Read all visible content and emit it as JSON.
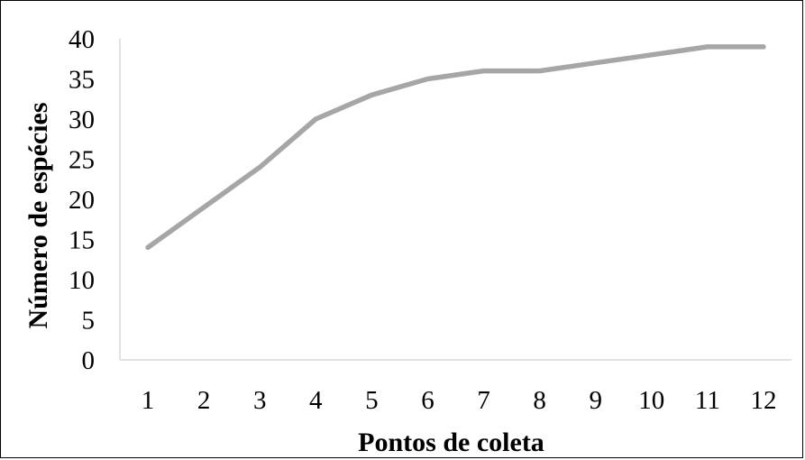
{
  "chart_data": {
    "type": "line",
    "title": "",
    "xlabel": "Pontos de coleta",
    "ylabel": "Número de espécies",
    "categories": [
      "1",
      "2",
      "3",
      "4",
      "5",
      "6",
      "7",
      "8",
      "9",
      "10",
      "11",
      "12"
    ],
    "series": [
      {
        "values": [
          14,
          19,
          24,
          30,
          33,
          35,
          36,
          36,
          37,
          38,
          39,
          39
        ]
      }
    ],
    "ylim": [
      0,
      40
    ],
    "yticks": [
      "0",
      "5",
      "10",
      "15",
      "20",
      "25",
      "30",
      "35",
      "40"
    ],
    "grid": false,
    "legend": "none",
    "colors": {
      "line": "#A6A6A6",
      "axis": "#D9D9D9",
      "text": "#000000"
    }
  }
}
